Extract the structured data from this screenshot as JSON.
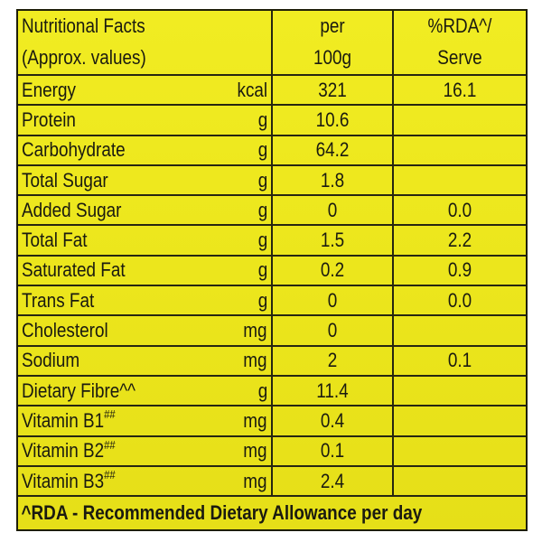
{
  "header": {
    "title": "Nutritional Facts",
    "subtitle": "(Approx. values)",
    "per_line1": "per",
    "per_line2": "100g",
    "rda_line1": "%RDA^/",
    "rda_line2": "Serve"
  },
  "rows": [
    {
      "name": "Energy",
      "sup": "",
      "unit": "kcal",
      "per": "321",
      "rda": "16.1"
    },
    {
      "name": "Protein",
      "sup": "",
      "unit": "g",
      "per": "10.6",
      "rda": ""
    },
    {
      "name": "Carbohydrate",
      "sup": "",
      "unit": "g",
      "per": "64.2",
      "rda": ""
    },
    {
      "name": "Total Sugar",
      "sup": "",
      "unit": "g",
      "per": "1.8",
      "rda": ""
    },
    {
      "name": "Added Sugar",
      "sup": "",
      "unit": "g",
      "per": "0",
      "rda": "0.0"
    },
    {
      "name": "Total Fat",
      "sup": "",
      "unit": "g",
      "per": "1.5",
      "rda": "2.2"
    },
    {
      "name": "Saturated Fat",
      "sup": "",
      "unit": "g",
      "per": "0.2",
      "rda": "0.9"
    },
    {
      "name": "Trans Fat",
      "sup": "",
      "unit": "g",
      "per": "0",
      "rda": "0.0"
    },
    {
      "name": "Cholesterol",
      "sup": "",
      "unit": "mg",
      "per": "0",
      "rda": ""
    },
    {
      "name": "Sodium",
      "sup": "",
      "unit": "mg",
      "per": "2",
      "rda": "0.1"
    },
    {
      "name": "Dietary Fibre^^",
      "sup": "",
      "unit": "g",
      "per": "11.4",
      "rda": ""
    },
    {
      "name": "Vitamin B1",
      "sup": "##",
      "unit": "mg",
      "per": "0.4",
      "rda": ""
    },
    {
      "name": "Vitamin B2",
      "sup": "##",
      "unit": "mg",
      "per": "0.1",
      "rda": ""
    },
    {
      "name": "Vitamin B3",
      "sup": "##",
      "unit": "mg",
      "per": "2.4",
      "rda": ""
    }
  ],
  "footer": "^RDA - Recommended Dietary Allowance per day",
  "colors": {
    "background": "#ece61c",
    "ink": "#1a1a10"
  }
}
